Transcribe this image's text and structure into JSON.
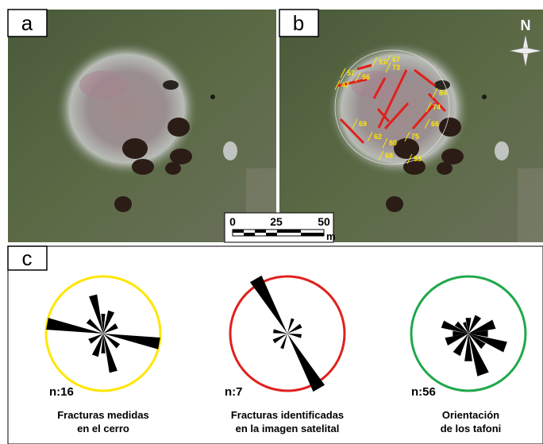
{
  "panel_a": {
    "label": "a"
  },
  "panel_b": {
    "label": "b",
    "north": "N",
    "dip_labels": [
      "57",
      "56",
      "47",
      "57",
      "67",
      "73",
      "84",
      "74",
      "66",
      "69",
      "62",
      "80",
      "75",
      "68",
      "53"
    ],
    "scale_bar": {
      "ticks": [
        "0",
        "25",
        "50"
      ],
      "unit": "m"
    }
  },
  "panel_c": {
    "label": "c",
    "roses": [
      {
        "n": "n:16",
        "caption": [
          "Fracturas medidas",
          "en el cerro"
        ]
      },
      {
        "n": "n:7",
        "caption": [
          "Fracturas identificadas",
          "en la imagen satelital"
        ]
      },
      {
        "n": "n:56",
        "caption": [
          "Orientación",
          "de los tafoni"
        ]
      }
    ]
  }
}
